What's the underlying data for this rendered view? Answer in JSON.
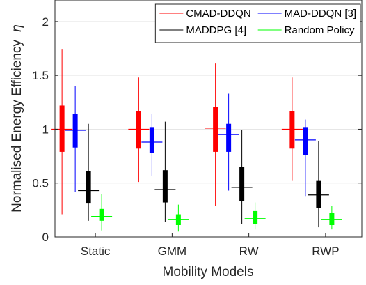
{
  "chart_data": {
    "type": "boxplot",
    "xlabel": "Mobility Models",
    "ylabel": "Normalised Energy Efficiency",
    "ylabel_symbol": "η",
    "ylim": [
      0,
      2.2
    ],
    "yticks": [
      0,
      0.5,
      1,
      1.5,
      2
    ],
    "ytick_labels": [
      "0",
      "0.5",
      "1",
      "1.5",
      "2"
    ],
    "grid": true,
    "legend_position": "top-right",
    "legend_columns": 2,
    "categories": [
      "Static",
      "GMM",
      "RW",
      "RWP"
    ],
    "series": [
      {
        "name": "CMAD-DDQN",
        "color": "#ff0000",
        "stats": [
          {
            "min": 0.21,
            "q1": 0.79,
            "median": 1.0,
            "q3": 1.22,
            "max": 1.74
          },
          {
            "min": 0.51,
            "q1": 0.82,
            "median": 1.0,
            "q3": 1.17,
            "max": 1.48
          },
          {
            "min": 0.29,
            "q1": 0.79,
            "median": 1.01,
            "q3": 1.21,
            "max": 1.61
          },
          {
            "min": 0.52,
            "q1": 0.82,
            "median": 1.0,
            "q3": 1.17,
            "max": 1.48
          }
        ]
      },
      {
        "name": "MAD-DDQN [3]",
        "color": "#0000ff",
        "stats": [
          {
            "min": 0.42,
            "q1": 0.83,
            "median": 0.99,
            "q3": 1.14,
            "max": 1.4
          },
          {
            "min": 0.57,
            "q1": 0.78,
            "median": 0.88,
            "q3": 1.02,
            "max": 1.14
          },
          {
            "min": 0.43,
            "q1": 0.79,
            "median": 0.95,
            "q3": 1.05,
            "max": 1.33
          },
          {
            "min": 0.38,
            "q1": 0.76,
            "median": 0.9,
            "q3": 1.02,
            "max": 1.09
          }
        ]
      },
      {
        "name": "MADDPG [4]",
        "color": "#000000",
        "stats": [
          {
            "min": 0.15,
            "q1": 0.31,
            "median": 0.43,
            "q3": 0.61,
            "max": 1.05
          },
          {
            "min": 0.14,
            "q1": 0.32,
            "median": 0.44,
            "q3": 0.62,
            "max": 1.07
          },
          {
            "min": 0.12,
            "q1": 0.33,
            "median": 0.46,
            "q3": 0.65,
            "max": 0.99
          },
          {
            "min": 0.09,
            "q1": 0.27,
            "median": 0.39,
            "q3": 0.52,
            "max": 0.89
          }
        ]
      },
      {
        "name": "Random Policy",
        "color": "#00ff00",
        "stats": [
          {
            "min": 0.06,
            "q1": 0.15,
            "median": 0.19,
            "q3": 0.26,
            "max": 0.4
          },
          {
            "min": 0.05,
            "q1": 0.11,
            "median": 0.16,
            "q3": 0.21,
            "max": 0.3
          },
          {
            "min": 0.07,
            "q1": 0.12,
            "median": 0.17,
            "q3": 0.24,
            "max": 0.32
          },
          {
            "min": 0.07,
            "q1": 0.11,
            "median": 0.16,
            "q3": 0.22,
            "max": 0.29
          }
        ]
      }
    ]
  }
}
